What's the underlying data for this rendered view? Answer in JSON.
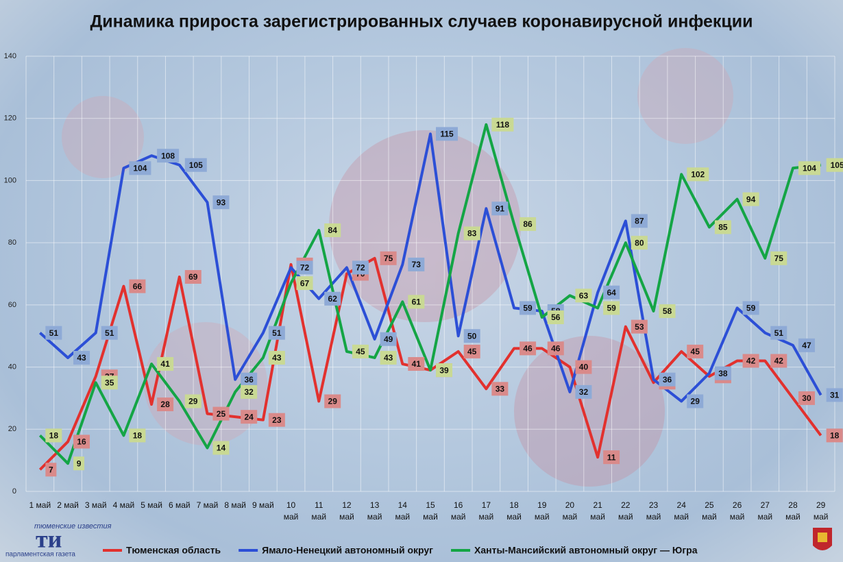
{
  "chart_data": {
    "type": "line",
    "title": "Динамика прироста зарегистрированных случаев коронавирусной инфекции",
    "categories": [
      "1 май",
      "2 май",
      "3 май",
      "4 май",
      "5 май",
      "6 май",
      "7 май",
      "8 май",
      "9 май",
      "10 май",
      "11 май",
      "12 май",
      "13 май",
      "14 май",
      "15 май",
      "16 май",
      "17 май",
      "18 май",
      "19 май",
      "20 май",
      "21 май",
      "22 май",
      "23 май",
      "24 май",
      "25 май",
      "26 май",
      "27 май",
      "28 май",
      "29 май"
    ],
    "series": [
      {
        "name": "Тюменская область",
        "color": "#e2312e",
        "label_color": "#d98a8a",
        "values": [
          7,
          16,
          37,
          66,
          28,
          69,
          25,
          24,
          23,
          73,
          29,
          70,
          75,
          41,
          39,
          45,
          33,
          46,
          46,
          40,
          11,
          53,
          35,
          45,
          37,
          42,
          42,
          30,
          18
        ]
      },
      {
        "name": "Ямало-Ненецкий автономный округ",
        "color": "#2c4fd6",
        "label_color": "#8eaad6",
        "values": [
          51,
          43,
          51,
          104,
          108,
          105,
          93,
          36,
          51,
          72,
          62,
          72,
          49,
          73,
          115,
          50,
          91,
          59,
          58,
          32,
          64,
          87,
          36,
          29,
          38,
          59,
          51,
          47,
          31
        ]
      },
      {
        "name": "Ханты-Мансийский автономный округ — Югра",
        "color": "#14a545",
        "label_color": "#c9d994",
        "values": [
          18,
          9,
          35,
          18,
          41,
          29,
          14,
          32,
          43,
          67,
          84,
          45,
          43,
          61,
          39,
          83,
          118,
          86,
          56,
          63,
          59,
          80,
          58,
          102,
          85,
          94,
          75,
          104,
          105
        ]
      }
    ],
    "ylim": [
      0,
      140
    ],
    "yticks": [
      0,
      20,
      40,
      60,
      80,
      100,
      120,
      140
    ],
    "grid": true
  },
  "logo": {
    "top": "тюменские известия",
    "mark": "ти",
    "bottom": "парламентская газета"
  }
}
